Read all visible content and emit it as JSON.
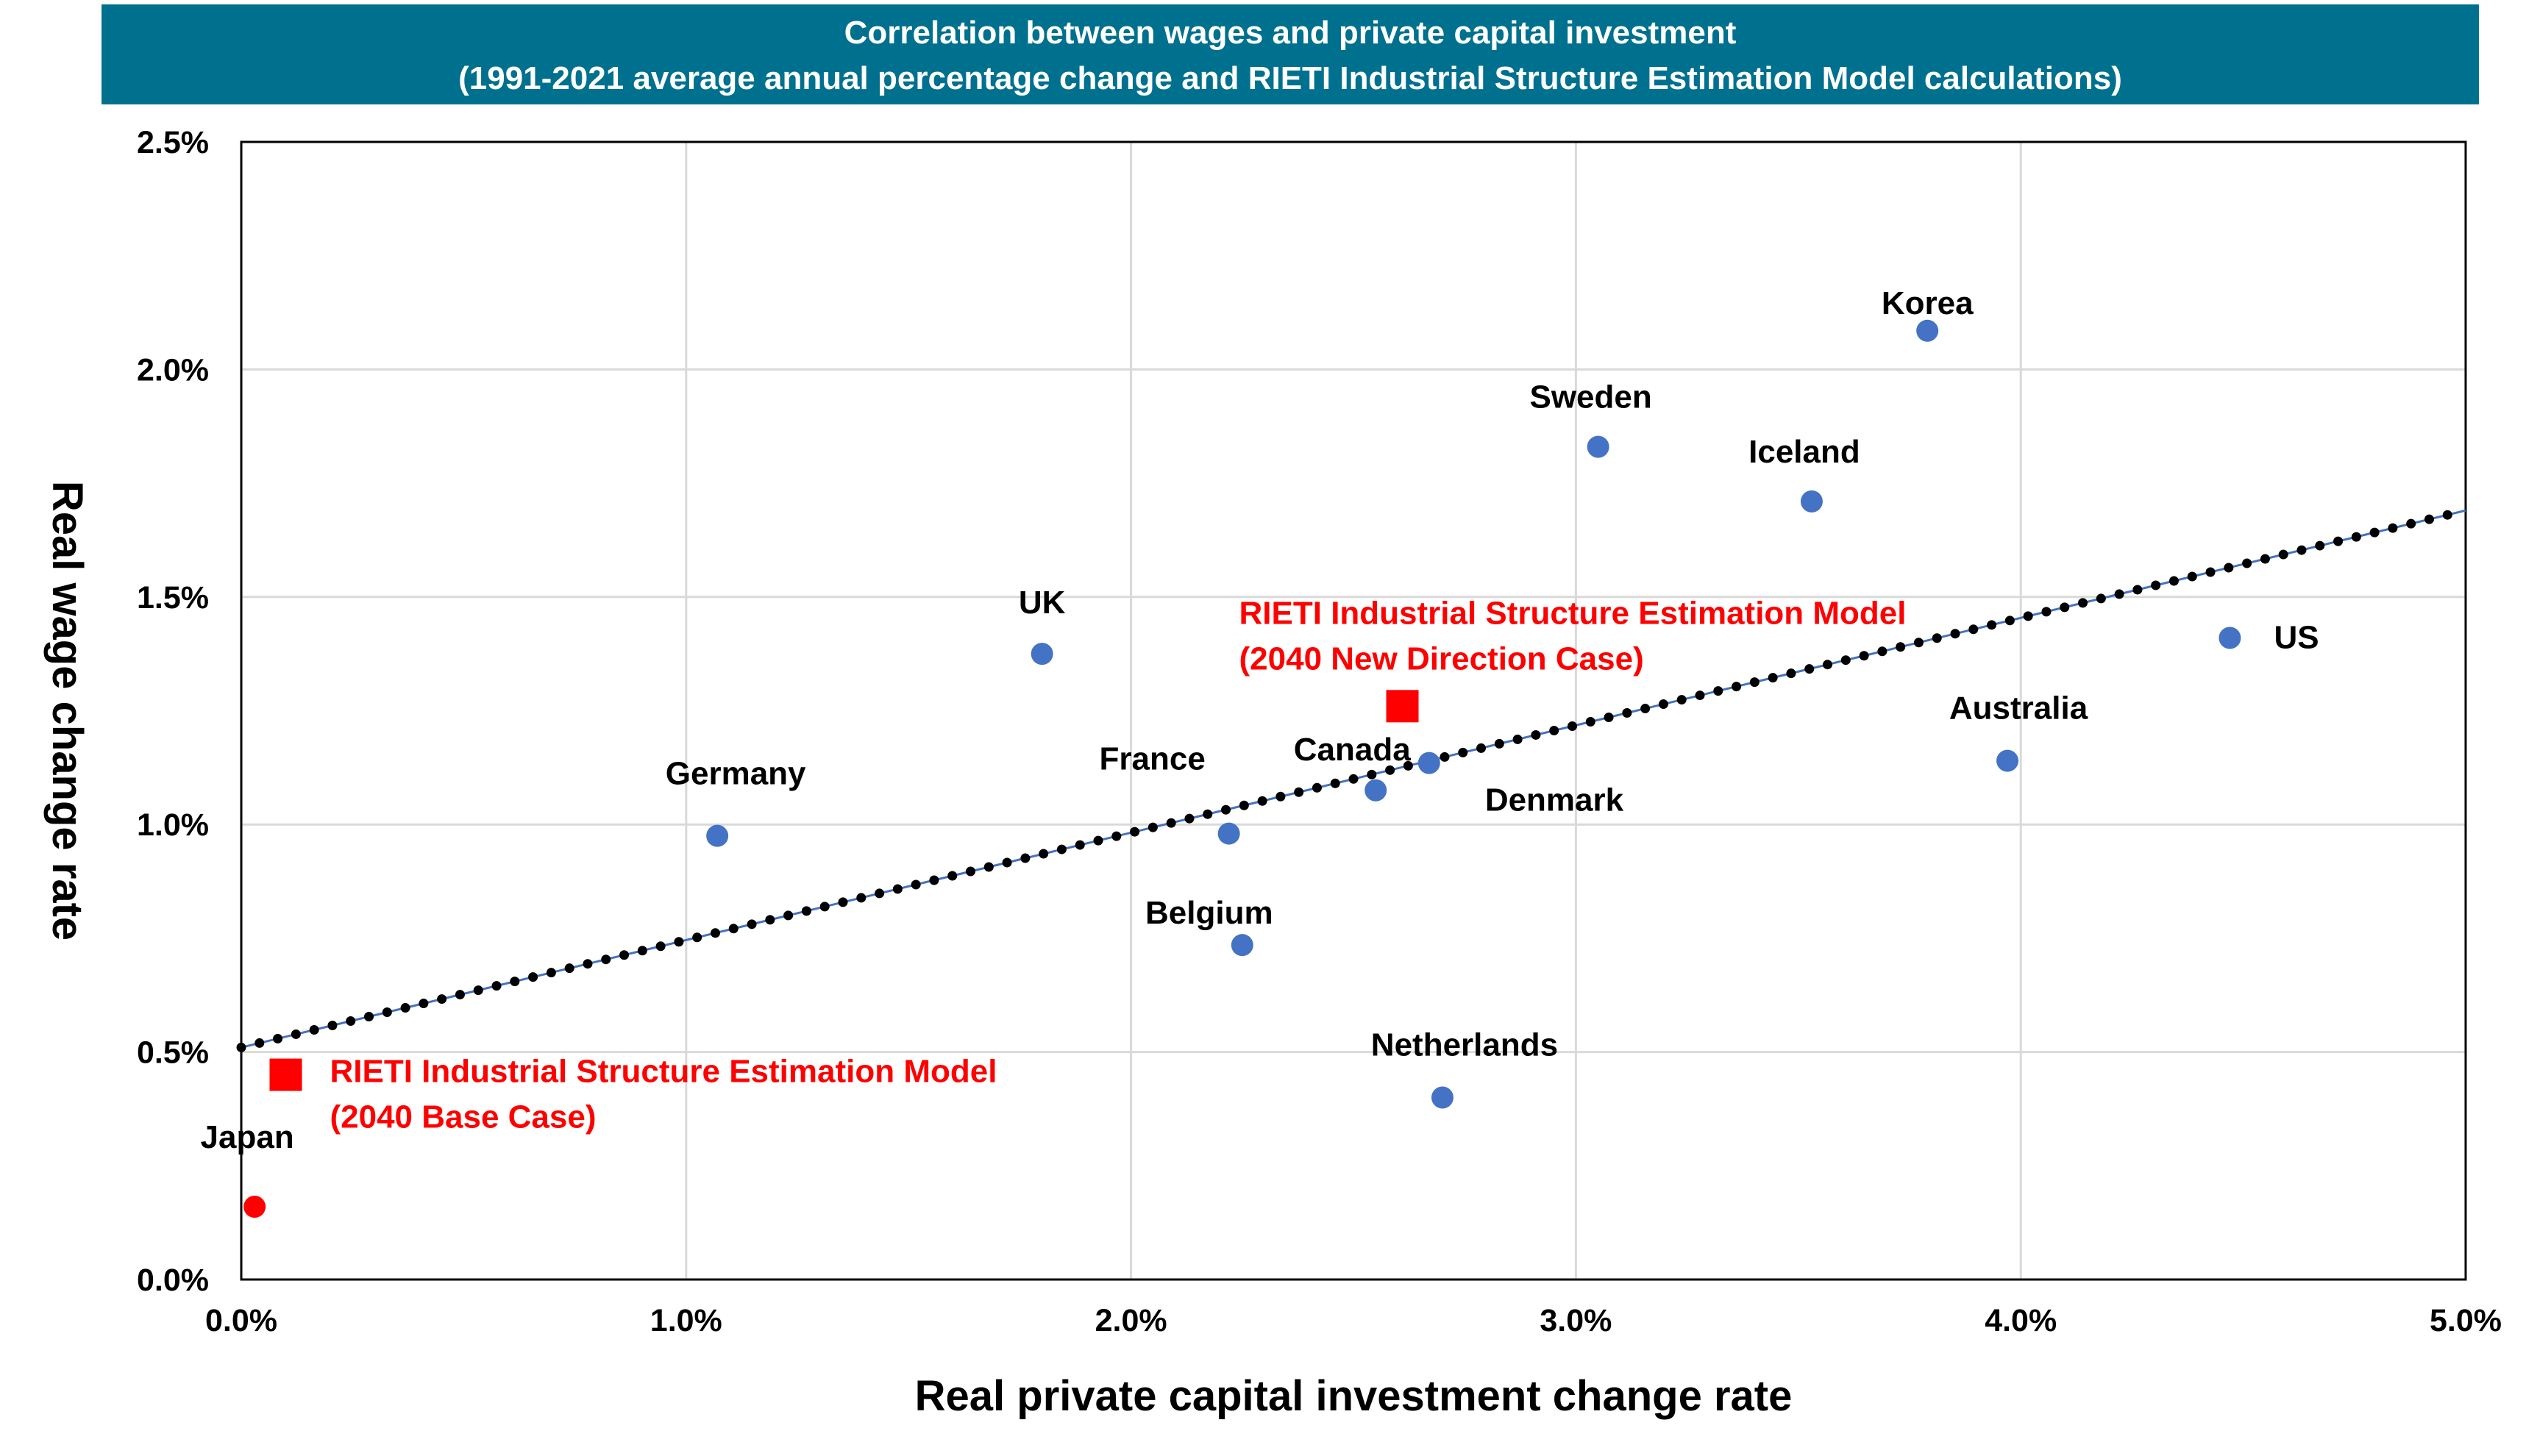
{
  "chart_data": {
    "type": "scatter",
    "title": "Correlation between wages and private capital investment",
    "subtitle": "(1991-2021 average annual percentage change and RIETI Industrial Structure Estimation Model calculations)",
    "xlabel": "Real private capital investment change rate",
    "ylabel": "Real wage change  rate",
    "xlim": [
      0,
      5
    ],
    "ylim": [
      0,
      2.5
    ],
    "x_ticks": [
      0,
      1,
      2,
      3,
      4,
      5
    ],
    "y_ticks": [
      0,
      0.5,
      1,
      1.5,
      2,
      2.5
    ],
    "x_tick_labels": [
      "0.0%",
      "1.0%",
      "2.0%",
      "3.0%",
      "4.0%",
      "5.0%"
    ],
    "y_tick_labels": [
      "0.0%",
      "0.5%",
      "1.0%",
      "1.5%",
      "2.0%",
      "2.5%"
    ],
    "grid": true,
    "colors": {
      "countries": "#4472c4",
      "highlight": "#ff0000",
      "trendline": "#000000",
      "banner": "#00708f"
    },
    "points": [
      {
        "label": "Japan",
        "x": 0.03,
        "y": 0.16,
        "color": "#ff0000"
      },
      {
        "label": "Germany",
        "x": 1.07,
        "y": 0.975
      },
      {
        "label": "UK",
        "x": 1.8,
        "y": 1.375
      },
      {
        "label": "France",
        "x": 2.22,
        "y": 0.98
      },
      {
        "label": "Belgium",
        "x": 2.25,
        "y": 0.735
      },
      {
        "label": "Canada",
        "x": 2.55,
        "y": 1.075
      },
      {
        "label": "Denmark",
        "x": 2.67,
        "y": 1.135
      },
      {
        "label": "Netherlands",
        "x": 2.7,
        "y": 0.4
      },
      {
        "label": "Sweden",
        "x": 3.05,
        "y": 1.83
      },
      {
        "label": "Iceland",
        "x": 3.53,
        "y": 1.71
      },
      {
        "label": "Korea",
        "x": 3.79,
        "y": 2.085
      },
      {
        "label": "Australia",
        "x": 3.97,
        "y": 1.14
      },
      {
        "label": "US",
        "x": 4.47,
        "y": 1.41
      }
    ],
    "highlight_points": [
      {
        "label_line1": "RIETI Industrial Structure Estimation Model",
        "label_line2": "(2040 Base Case)",
        "x": 0.1,
        "y": 0.45
      },
      {
        "label_line1": "RIETI Industrial Structure Estimation Model",
        "label_line2": "(2040 New Direction Case)",
        "x": 2.61,
        "y": 1.26
      }
    ],
    "trendline": {
      "type": "linear",
      "style": "dotted",
      "start": [
        0,
        0.51
      ],
      "end": [
        5,
        1.69
      ]
    }
  }
}
